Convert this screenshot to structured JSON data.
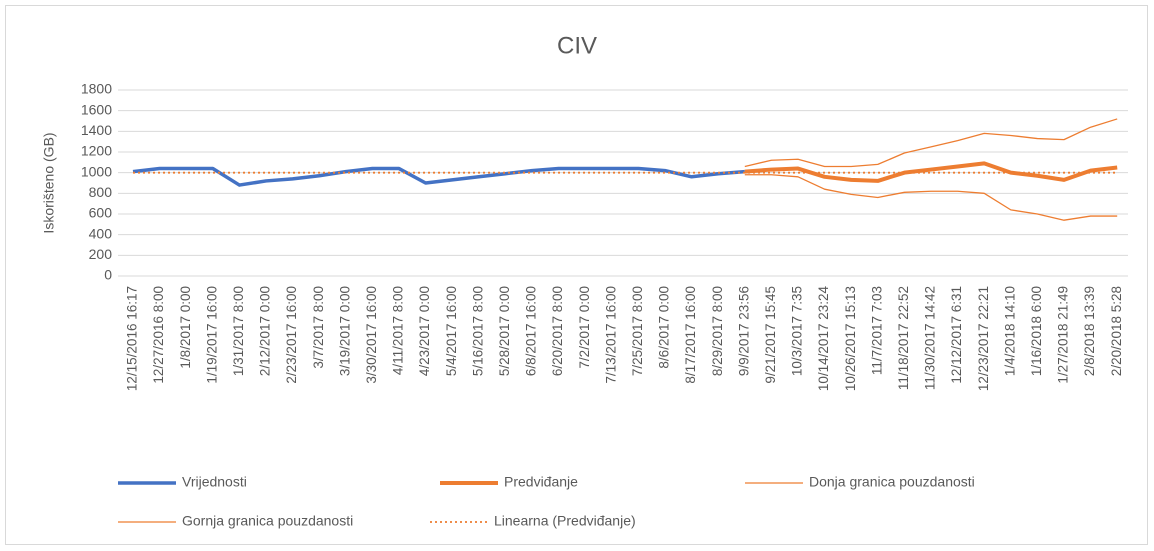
{
  "chart_data": {
    "type": "line",
    "title": "CIV",
    "y_label": "Iskorišteno (GB)",
    "categories": [
      "12/15/2016 16:17",
      "12/27/2016 8:00",
      "1/8/2017 0:00",
      "1/19/2017 16:00",
      "1/31/2017 8:00",
      "2/12/2017 0:00",
      "2/23/2017 16:00",
      "3/7/2017 8:00",
      "3/19/2017 0:00",
      "3/30/2017 16:00",
      "4/11/2017 8:00",
      "4/23/2017 0:00",
      "5/4/2017 16:00",
      "5/16/2017 8:00",
      "5/28/2017 0:00",
      "6/8/2017 16:00",
      "6/20/2017 8:00",
      "7/2/2017 0:00",
      "7/13/2017 16:00",
      "7/25/2017 8:00",
      "8/6/2017 0:00",
      "8/17/2017 16:00",
      "8/29/2017 8:00",
      "9/9/2017 23:56",
      "9/21/2017 15:45",
      "10/3/2017 7:35",
      "10/14/2017 23:24",
      "10/26/2017 15:13",
      "11/7/2017 7:03",
      "11/18/2017 22:52",
      "11/30/2017 14:42",
      "12/12/2017 6:31",
      "12/23/2017 22:21",
      "1/4/2018 14:10",
      "1/16/2018 6:00",
      "1/27/2018 21:49",
      "2/8/2018 13:39",
      "2/20/2018 5:28"
    ],
    "series": [
      {
        "name": "Vrijednosti",
        "color": "#4472c4",
        "values": [
          1010,
          1040,
          1040,
          1040,
          880,
          920,
          940,
          970,
          1010,
          1040,
          1040,
          900,
          930,
          960,
          990,
          1020,
          1040,
          1040,
          1040,
          1040,
          1020,
          960,
          990,
          1010,
          null,
          null,
          null,
          null,
          null,
          null,
          null,
          null,
          null,
          null,
          null,
          null,
          null,
          null
        ]
      },
      {
        "name": "Predviđanje",
        "color": "#ed7d31",
        "values": [
          null,
          null,
          null,
          null,
          null,
          null,
          null,
          null,
          null,
          null,
          null,
          null,
          null,
          null,
          null,
          null,
          null,
          null,
          null,
          null,
          null,
          null,
          null,
          1010,
          1030,
          1040,
          960,
          930,
          920,
          1000,
          1030,
          1060,
          1090,
          1000,
          970,
          930,
          1020,
          1050
        ]
      },
      {
        "name": "Donja granica pouzdanosti",
        "color": "#ed7d31",
        "values": [
          null,
          null,
          null,
          null,
          null,
          null,
          null,
          null,
          null,
          null,
          null,
          null,
          null,
          null,
          null,
          null,
          null,
          null,
          null,
          null,
          null,
          null,
          null,
          980,
          980,
          960,
          840,
          790,
          760,
          810,
          820,
          820,
          800,
          640,
          600,
          540,
          580,
          580
        ]
      },
      {
        "name": "Gornja granica pouzdanosti",
        "color": "#ed7d31",
        "values": [
          null,
          null,
          null,
          null,
          null,
          null,
          null,
          null,
          null,
          null,
          null,
          null,
          null,
          null,
          null,
          null,
          null,
          null,
          null,
          null,
          null,
          null,
          null,
          1060,
          1120,
          1130,
          1060,
          1060,
          1080,
          1190,
          1250,
          1310,
          1380,
          1360,
          1330,
          1320,
          1440,
          1520
        ]
      },
      {
        "name": "Linearna (Predviđanje)",
        "color": "#ed7d31",
        "values": [
          1000,
          1000,
          1000,
          1000,
          1000,
          1000,
          1000,
          1000,
          1000,
          1000,
          1000,
          1000,
          1000,
          1000,
          1000,
          1000,
          1000,
          1000,
          1000,
          1000,
          1000,
          1000,
          1000,
          1000,
          1000,
          1000,
          1000,
          1000,
          1000,
          1000,
          1000,
          1000,
          1000,
          1000,
          1000,
          1000,
          1000,
          1000
        ]
      }
    ],
    "ylim": [
      0,
      1800
    ],
    "yticks": [
      0,
      200,
      400,
      600,
      800,
      1000,
      1200,
      1400,
      1600,
      1800
    ],
    "grid": true,
    "legend": "bottom"
  }
}
